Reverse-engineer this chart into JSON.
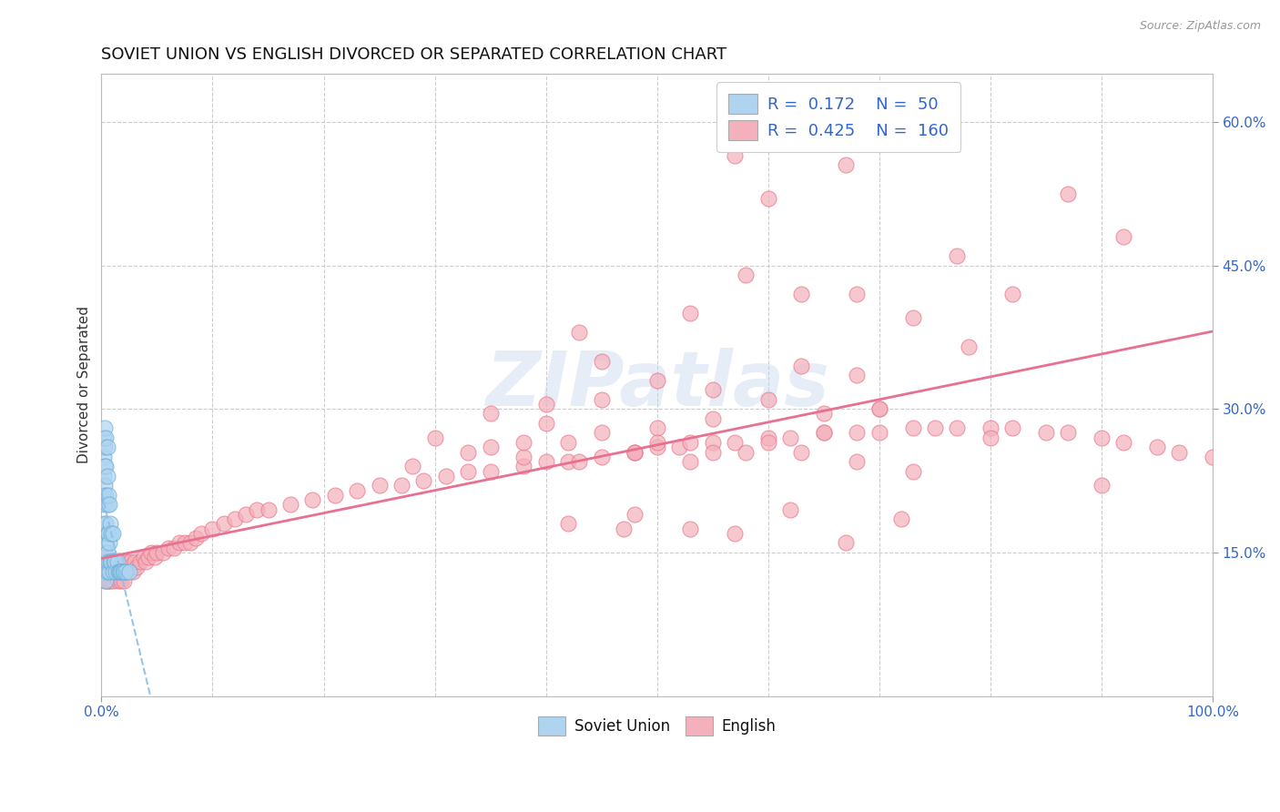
{
  "title": "SOVIET UNION VS ENGLISH DIVORCED OR SEPARATED CORRELATION CHART",
  "source": "Source: ZipAtlas.com",
  "ylabel": "Divorced or Separated",
  "xlim": [
    0,
    1.0
  ],
  "ylim": [
    0,
    0.65
  ],
  "ytick_positions": [
    0.15,
    0.3,
    0.45,
    0.6
  ],
  "ytick_labels": [
    "15.0%",
    "30.0%",
    "45.0%",
    "60.0%"
  ],
  "color_blue": "#aed4f0",
  "color_pink": "#f4b0bc",
  "edge_blue": "#6aaed6",
  "edge_pink": "#e8788a",
  "trendline_blue_color": "#8ac0e8",
  "trendline_pink_color": "#e87090",
  "watermark_text": "ZIPatlas",
  "background_color": "#ffffff",
  "grid_color": "#cccccc",
  "blue_x": [
    0.002,
    0.002,
    0.002,
    0.002,
    0.002,
    0.003,
    0.003,
    0.003,
    0.003,
    0.003,
    0.003,
    0.003,
    0.003,
    0.004,
    0.004,
    0.004,
    0.004,
    0.004,
    0.004,
    0.004,
    0.005,
    0.005,
    0.005,
    0.005,
    0.005,
    0.005,
    0.006,
    0.006,
    0.006,
    0.007,
    0.007,
    0.007,
    0.008,
    0.008,
    0.009,
    0.009,
    0.01,
    0.01,
    0.011,
    0.012,
    0.013,
    0.014,
    0.015,
    0.016,
    0.017,
    0.018,
    0.019,
    0.02,
    0.022,
    0.025
  ],
  "blue_y": [
    0.18,
    0.21,
    0.23,
    0.25,
    0.27,
    0.13,
    0.15,
    0.17,
    0.2,
    0.22,
    0.24,
    0.26,
    0.28,
    0.12,
    0.14,
    0.16,
    0.18,
    0.21,
    0.24,
    0.27,
    0.13,
    0.15,
    0.17,
    0.2,
    0.23,
    0.26,
    0.14,
    0.17,
    0.21,
    0.13,
    0.16,
    0.2,
    0.14,
    0.18,
    0.14,
    0.17,
    0.13,
    0.17,
    0.14,
    0.14,
    0.13,
    0.14,
    0.13,
    0.13,
    0.13,
    0.13,
    0.13,
    0.13,
    0.13,
    0.13
  ],
  "pink_x": [
    0.002,
    0.003,
    0.004,
    0.004,
    0.005,
    0.005,
    0.005,
    0.006,
    0.006,
    0.007,
    0.007,
    0.008,
    0.008,
    0.009,
    0.009,
    0.01,
    0.01,
    0.01,
    0.011,
    0.011,
    0.012,
    0.012,
    0.013,
    0.013,
    0.014,
    0.015,
    0.015,
    0.016,
    0.016,
    0.017,
    0.018,
    0.018,
    0.019,
    0.02,
    0.02,
    0.021,
    0.022,
    0.023,
    0.025,
    0.026,
    0.028,
    0.03,
    0.032,
    0.035,
    0.038,
    0.04,
    0.042,
    0.045,
    0.048,
    0.05,
    0.055,
    0.06,
    0.065,
    0.07,
    0.075,
    0.08,
    0.085,
    0.09,
    0.1,
    0.11,
    0.12,
    0.13,
    0.14,
    0.15,
    0.17,
    0.19,
    0.21,
    0.23,
    0.25,
    0.27,
    0.29,
    0.31,
    0.33,
    0.35,
    0.38,
    0.4,
    0.42,
    0.45,
    0.48,
    0.5,
    0.52,
    0.55,
    0.57,
    0.6,
    0.62,
    0.65,
    0.68,
    0.7,
    0.73,
    0.75,
    0.77,
    0.8,
    0.82,
    0.85,
    0.87,
    0.9,
    0.92,
    0.95,
    0.97,
    1.0,
    0.35,
    0.4,
    0.45,
    0.5,
    0.55,
    0.6,
    0.65,
    0.7,
    0.3,
    0.35,
    0.4,
    0.45,
    0.5,
    0.55,
    0.6,
    0.65,
    0.45,
    0.5,
    0.55,
    0.38,
    0.42,
    0.48,
    0.53,
    0.28,
    0.33,
    0.38,
    0.43,
    0.48,
    0.53,
    0.58,
    0.63,
    0.68,
    0.73,
    0.43,
    0.53,
    0.63,
    0.58,
    0.68,
    0.73,
    0.78,
    0.63,
    0.68,
    0.48,
    0.53,
    0.42,
    0.62,
    0.72,
    0.47,
    0.57,
    0.67,
    0.57,
    0.67,
    0.77,
    0.82,
    0.87,
    0.92,
    0.6,
    0.7,
    0.8,
    0.9
  ],
  "pink_y": [
    0.13,
    0.12,
    0.13,
    0.14,
    0.12,
    0.13,
    0.145,
    0.12,
    0.135,
    0.13,
    0.14,
    0.12,
    0.13,
    0.135,
    0.14,
    0.12,
    0.13,
    0.14,
    0.125,
    0.135,
    0.13,
    0.14,
    0.125,
    0.135,
    0.13,
    0.12,
    0.135,
    0.13,
    0.14,
    0.135,
    0.12,
    0.13,
    0.135,
    0.12,
    0.13,
    0.135,
    0.13,
    0.14,
    0.135,
    0.14,
    0.13,
    0.14,
    0.135,
    0.14,
    0.145,
    0.14,
    0.145,
    0.15,
    0.145,
    0.15,
    0.15,
    0.155,
    0.155,
    0.16,
    0.16,
    0.16,
    0.165,
    0.17,
    0.175,
    0.18,
    0.185,
    0.19,
    0.195,
    0.195,
    0.2,
    0.205,
    0.21,
    0.215,
    0.22,
    0.22,
    0.225,
    0.23,
    0.235,
    0.235,
    0.24,
    0.245,
    0.245,
    0.25,
    0.255,
    0.26,
    0.26,
    0.265,
    0.265,
    0.27,
    0.27,
    0.275,
    0.275,
    0.275,
    0.28,
    0.28,
    0.28,
    0.28,
    0.28,
    0.275,
    0.275,
    0.27,
    0.265,
    0.26,
    0.255,
    0.25,
    0.295,
    0.305,
    0.31,
    0.28,
    0.29,
    0.31,
    0.295,
    0.3,
    0.27,
    0.26,
    0.285,
    0.275,
    0.265,
    0.255,
    0.265,
    0.275,
    0.35,
    0.33,
    0.32,
    0.25,
    0.265,
    0.255,
    0.265,
    0.24,
    0.255,
    0.265,
    0.245,
    0.255,
    0.245,
    0.255,
    0.255,
    0.245,
    0.235,
    0.38,
    0.4,
    0.42,
    0.44,
    0.42,
    0.395,
    0.365,
    0.345,
    0.335,
    0.19,
    0.175,
    0.18,
    0.195,
    0.185,
    0.175,
    0.17,
    0.16,
    0.565,
    0.555,
    0.46,
    0.42,
    0.525,
    0.48,
    0.52,
    0.3,
    0.27,
    0.22
  ]
}
